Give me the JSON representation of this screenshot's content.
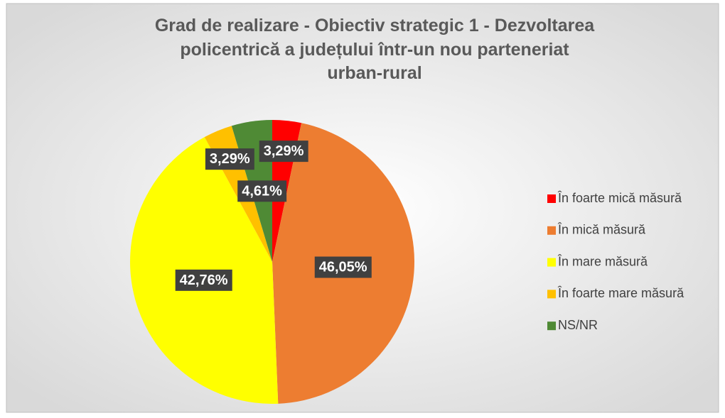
{
  "chart_data": {
    "type": "pie",
    "title": "Grad de realizare - Obiectiv strategic 1 - Dezvoltarea policentrică a județului într-un nou parteneriat urban-rural",
    "categories": [
      "În foarte mică măsură",
      "În mică măsură",
      "În mare măsură",
      "În foarte mare măsură",
      "NS/NR"
    ],
    "values": [
      3.29,
      46.05,
      42.76,
      3.29,
      4.61
    ],
    "value_labels": [
      "3,29%",
      "46,05%",
      "42,76%",
      "3,29%",
      "4,61%"
    ],
    "colors": [
      "#ff0000",
      "#ed7d31",
      "#ffff00",
      "#ffc000",
      "#4f8a35"
    ],
    "legend": "right"
  }
}
